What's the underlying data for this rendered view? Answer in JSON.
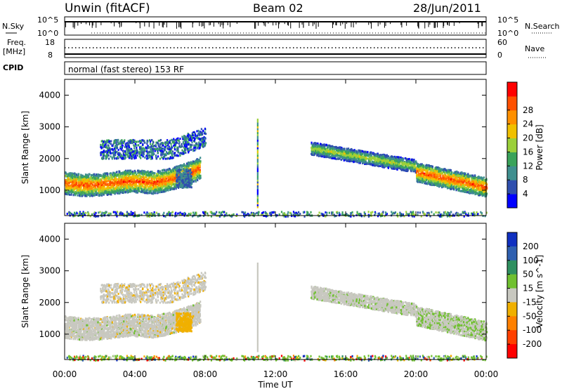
{
  "header": {
    "station": "Unwin (fitACF)",
    "beam": "Beam 02",
    "date": "28/Jun/2011"
  },
  "noise_panel": {
    "left_label": "N.Sky",
    "right_label": "N.Search",
    "left_ticks": [
      "10^5",
      "10^0"
    ],
    "right_ticks": [
      "10^5",
      "10^0"
    ]
  },
  "freq_panel": {
    "left_label_1": "Freq.",
    "left_label_2": "[MHz]",
    "right_label": "Nave",
    "left_ticks": [
      "18",
      "8"
    ],
    "right_ticks": [
      "60",
      "0"
    ]
  },
  "cpid_panel": {
    "label": "CPID",
    "text": "normal (fast stereo) 153 RF"
  },
  "colors": {
    "power_scale": [
      "#0000ff",
      "#2f4fae",
      "#3f8f8f",
      "#3aa35a",
      "#9bd03a",
      "#f0c000",
      "#ff9000",
      "#ff5000",
      "#ff0000"
    ],
    "velocity_scale": [
      "#1030c0",
      "#2f60b0",
      "#2f9060",
      "#70c030",
      "#c8c8c0",
      "#f0b000",
      "#ff8000",
      "#ff4000",
      "#ff0000"
    ],
    "text": "#000000"
  },
  "chart_data": [
    {
      "type": "heatmap",
      "name": "power",
      "title": "",
      "xlabel": "",
      "ylabel": "Slant Range [km]",
      "xlim": [
        "00:00",
        "24:00"
      ],
      "ylim": [
        200,
        4500
      ],
      "y_ticks": [
        1000,
        2000,
        3000,
        4000
      ],
      "colorbar": {
        "label": "Power [dB]",
        "ticks": [
          4,
          8,
          12,
          16,
          20,
          24,
          28
        ],
        "range": [
          0,
          32
        ]
      },
      "echo_bands": [
        {
          "x_start_h": 0.0,
          "x_end_h": 7.7,
          "range_km_start": 1200,
          "range_km_end": 1900,
          "peak_db": 28
        },
        {
          "x_start_h": 2.0,
          "x_end_h": 8.0,
          "range_km_start": 2200,
          "range_km_end": 2700,
          "peak_db": 16
        },
        {
          "x_start_h": 14.0,
          "x_end_h": 20.0,
          "range_km_start": 2300,
          "range_km_end": 1800,
          "peak_db": 20
        },
        {
          "x_start_h": 20.0,
          "x_end_h": 24.0,
          "range_km_start": 1600,
          "range_km_end": 1100,
          "peak_db": 28
        }
      ]
    },
    {
      "type": "heatmap",
      "name": "velocity",
      "title": "",
      "xlabel": "Time UT",
      "ylabel": "Slant Range [km]",
      "xlim": [
        "00:00",
        "24:00"
      ],
      "ylim": [
        200,
        4500
      ],
      "x_ticks": [
        "00:00",
        "04:00",
        "08:00",
        "12:00",
        "16:00",
        "20:00",
        "00:00"
      ],
      "y_ticks": [
        1000,
        2000,
        3000,
        4000
      ],
      "colorbar": {
        "label": "Velocity [m s^-1]",
        "ticks": [
          200,
          100,
          50,
          15,
          -15,
          -50,
          -100,
          -200
        ]
      },
      "dominant_velocity_bin": "-15 to 15"
    }
  ]
}
